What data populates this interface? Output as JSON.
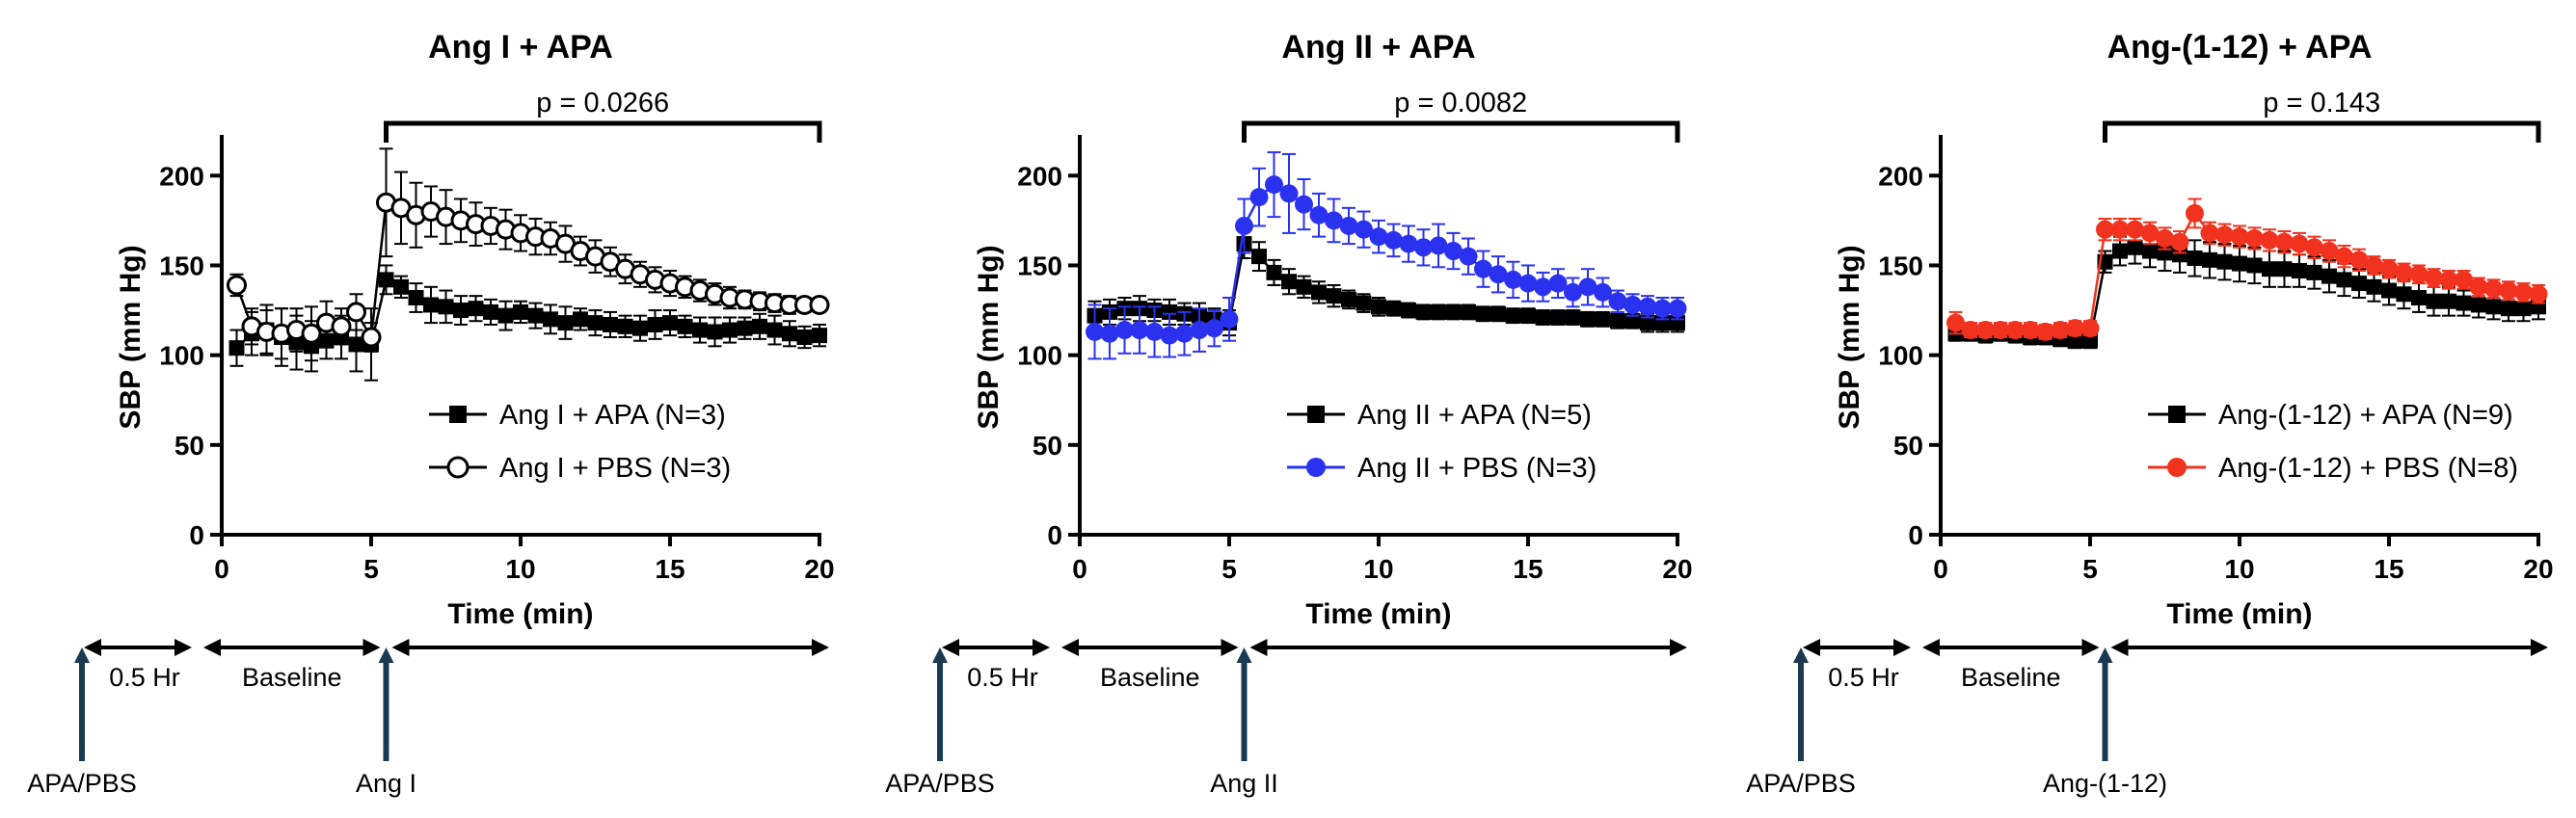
{
  "chart_data": [
    {
      "type": "line",
      "title": "Ang I + APA",
      "xlabel": "Time (min)",
      "ylabel": "SBP (mm Hg)",
      "xlim": [
        0,
        20
      ],
      "ylim": [
        0,
        220
      ],
      "xticks": [
        0,
        5,
        10,
        15,
        20
      ],
      "yticks": [
        0,
        50,
        100,
        150,
        200
      ],
      "pvalue_label": "p = 0.0266",
      "bracket_range": [
        5.5,
        20
      ],
      "legend_position": "lower-right",
      "timeline": {
        "interval_label": "0.5 Hr",
        "baseline_label": "Baseline",
        "treatment_label": "APA/PBS",
        "agonist_label": "Ang I"
      },
      "series": [
        {
          "name": "Ang I + APA (N=3)",
          "marker": "square-filled",
          "color": "#000000",
          "x": [
            0.5,
            1,
            1.5,
            2,
            2.5,
            3,
            3.5,
            4,
            4.5,
            5,
            5.5,
            6,
            6.5,
            7,
            7.5,
            8,
            8.5,
            9,
            9.5,
            10,
            10.5,
            11,
            11.5,
            12,
            12.5,
            13,
            13.5,
            14,
            14.5,
            15,
            15.5,
            16,
            16.5,
            17,
            17.5,
            18,
            18.5,
            19,
            19.5,
            20
          ],
          "y": [
            104,
            112,
            114,
            110,
            107,
            105,
            108,
            110,
            106,
            106,
            142,
            138,
            132,
            128,
            127,
            125,
            126,
            124,
            122,
            124,
            122,
            120,
            118,
            120,
            118,
            117,
            116,
            115,
            117,
            118,
            116,
            114,
            113,
            114,
            115,
            116,
            114,
            112,
            110,
            111
          ],
          "err": [
            10,
            12,
            14,
            16,
            15,
            14,
            10,
            12,
            15,
            20,
            8,
            6,
            8,
            10,
            9,
            8,
            7,
            7,
            8,
            6,
            7,
            8,
            9,
            6,
            7,
            7,
            6,
            7,
            8,
            7,
            6,
            7,
            8,
            7,
            6,
            7,
            8,
            7,
            6,
            6
          ]
        },
        {
          "name": "Ang I + PBS (N=3)",
          "marker": "circle-open",
          "color": "#000000",
          "x": [
            0.5,
            1,
            1.5,
            2,
            2.5,
            3,
            3.5,
            4,
            4.5,
            5,
            5.5,
            6,
            6.5,
            7,
            7.5,
            8,
            8.5,
            9,
            9.5,
            10,
            10.5,
            11,
            11.5,
            12,
            12.5,
            13,
            13.5,
            14,
            14.5,
            15,
            15.5,
            16,
            16.5,
            17,
            17.5,
            18,
            18.5,
            19,
            19.5,
            20
          ],
          "y": [
            139,
            116,
            113,
            112,
            114,
            112,
            118,
            116,
            124,
            110,
            185,
            182,
            178,
            180,
            177,
            175,
            173,
            172,
            170,
            168,
            166,
            165,
            162,
            158,
            155,
            152,
            148,
            145,
            142,
            140,
            138,
            136,
            134,
            132,
            131,
            130,
            129,
            128,
            128,
            128
          ],
          "err": [
            6,
            10,
            12,
            14,
            12,
            15,
            12,
            10,
            10,
            8,
            30,
            20,
            18,
            14,
            15,
            12,
            12,
            10,
            11,
            10,
            10,
            9,
            10,
            8,
            9,
            8,
            8,
            7,
            7,
            7,
            6,
            6,
            6,
            6,
            5,
            5,
            5,
            5,
            4,
            4
          ]
        }
      ]
    },
    {
      "type": "line",
      "title": "Ang II + APA",
      "xlabel": "Time (min)",
      "ylabel": "SBP (mm Hg)",
      "xlim": [
        0,
        20
      ],
      "ylim": [
        0,
        220
      ],
      "xticks": [
        0,
        5,
        10,
        15,
        20
      ],
      "yticks": [
        0,
        50,
        100,
        150,
        200
      ],
      "pvalue_label": "p = 0.0082",
      "bracket_range": [
        5.5,
        20
      ],
      "legend_position": "lower-right",
      "timeline": {
        "interval_label": "0.5 Hr",
        "baseline_label": "Baseline",
        "treatment_label": "APA/PBS",
        "agonist_label": "Ang II"
      },
      "series": [
        {
          "name": "Ang II + APA (N=5)",
          "marker": "square-filled",
          "color": "#000000",
          "x": [
            0.5,
            1,
            1.5,
            2,
            2.5,
            3,
            3.5,
            4,
            4.5,
            5,
            5.5,
            6,
            6.5,
            7,
            7.5,
            8,
            8.5,
            9,
            9.5,
            10,
            10.5,
            11,
            11.5,
            12,
            12.5,
            13,
            13.5,
            14,
            14.5,
            15,
            15.5,
            16,
            16.5,
            17,
            17.5,
            18,
            18.5,
            19,
            19.5,
            20
          ],
          "y": [
            122,
            124,
            126,
            126,
            125,
            124,
            123,
            122,
            120,
            118,
            162,
            155,
            146,
            141,
            138,
            135,
            133,
            131,
            129,
            127,
            126,
            125,
            124,
            124,
            124,
            124,
            123,
            123,
            122,
            122,
            121,
            121,
            121,
            120,
            120,
            119,
            119,
            118,
            118,
            118
          ],
          "err": [
            8,
            7,
            6,
            7,
            6,
            7,
            6,
            7,
            6,
            7,
            8,
            8,
            7,
            7,
            6,
            6,
            6,
            5,
            5,
            5,
            4,
            4,
            4,
            4,
            4,
            4,
            4,
            4,
            4,
            4,
            4,
            4,
            4,
            4,
            4,
            4,
            4,
            5,
            5,
            5
          ]
        },
        {
          "name": "Ang II + PBS (N=3)",
          "marker": "circle-filled",
          "color": "#2a32f0",
          "x": [
            0.5,
            1,
            1.5,
            2,
            2.5,
            3,
            3.5,
            4,
            4.5,
            5,
            5.5,
            6,
            6.5,
            7,
            7.5,
            8,
            8.5,
            9,
            9.5,
            10,
            10.5,
            11,
            11.5,
            12,
            12.5,
            13,
            13.5,
            14,
            14.5,
            15,
            15.5,
            16,
            16.5,
            17,
            17.5,
            18,
            18.5,
            19,
            19.5,
            20
          ],
          "y": [
            113,
            112,
            114,
            114,
            113,
            111,
            112,
            114,
            115,
            120,
            172,
            188,
            195,
            190,
            184,
            178,
            175,
            172,
            170,
            166,
            164,
            162,
            160,
            161,
            158,
            155,
            148,
            145,
            142,
            140,
            138,
            140,
            135,
            138,
            135,
            130,
            128,
            127,
            126,
            126
          ],
          "err": [
            15,
            14,
            13,
            13,
            14,
            12,
            12,
            12,
            10,
            12,
            15,
            16,
            18,
            22,
            14,
            12,
            12,
            10,
            10,
            9,
            9,
            10,
            10,
            12,
            10,
            10,
            10,
            10,
            10,
            10,
            8,
            8,
            8,
            10,
            8,
            6,
            6,
            6,
            6,
            6
          ]
        }
      ]
    },
    {
      "type": "line",
      "title": "Ang-(1-12) + APA",
      "xlabel": "Time (min)",
      "ylabel": "SBP (mm Hg)",
      "xlim": [
        0,
        20
      ],
      "ylim": [
        0,
        220
      ],
      "xticks": [
        0,
        5,
        10,
        15,
        20
      ],
      "yticks": [
        0,
        50,
        100,
        150,
        200
      ],
      "pvalue_label": "p = 0.143",
      "bracket_range": [
        5.5,
        20
      ],
      "legend_position": "lower-right",
      "timeline": {
        "interval_label": "0.5 Hr",
        "baseline_label": "Baseline",
        "treatment_label": "APA/PBS",
        "agonist_label": "Ang-(1-12)"
      },
      "series": [
        {
          "name": "Ang-(1-12) + APA (N=9)",
          "marker": "square-filled",
          "color": "#000000",
          "x": [
            0.5,
            1,
            1.5,
            2,
            2.5,
            3,
            3.5,
            4,
            4.5,
            5,
            5.5,
            6,
            6.5,
            7,
            7.5,
            8,
            8.5,
            9,
            9.5,
            10,
            10.5,
            11,
            11.5,
            12,
            12.5,
            13,
            13.5,
            14,
            14.5,
            15,
            15.5,
            16,
            16.5,
            17,
            17.5,
            18,
            18.5,
            19,
            19.5,
            20
          ],
          "y": [
            112,
            112,
            111,
            112,
            111,
            110,
            110,
            109,
            108,
            108,
            152,
            158,
            160,
            158,
            157,
            156,
            154,
            153,
            152,
            151,
            150,
            148,
            148,
            147,
            146,
            144,
            142,
            140,
            138,
            136,
            134,
            132,
            130,
            130,
            129,
            128,
            127,
            126,
            126,
            127
          ],
          "err": [
            4,
            4,
            4,
            4,
            4,
            4,
            4,
            4,
            4,
            4,
            6,
            8,
            9,
            9,
            10,
            10,
            10,
            10,
            10,
            10,
            10,
            10,
            10,
            9,
            9,
            9,
            9,
            8,
            8,
            8,
            8,
            8,
            8,
            8,
            7,
            7,
            7,
            7,
            7,
            7
          ]
        },
        {
          "name": "Ang-(1-12) + PBS (N=8)",
          "marker": "circle-filled",
          "color": "#f0321e",
          "x": [
            0.5,
            1,
            1.5,
            2,
            2.5,
            3,
            3.5,
            4,
            4.5,
            5,
            5.5,
            6,
            6.5,
            7,
            7.5,
            8,
            8.5,
            9,
            9.5,
            10,
            10.5,
            11,
            11.5,
            12,
            12.5,
            13,
            13.5,
            14,
            14.5,
            15,
            15.5,
            16,
            16.5,
            17,
            17.5,
            18,
            18.5,
            19,
            19.5,
            20
          ],
          "y": [
            118,
            114,
            114,
            114,
            114,
            114,
            113,
            114,
            115,
            115,
            170,
            170,
            170,
            168,
            165,
            163,
            179,
            168,
            167,
            166,
            165,
            164,
            163,
            162,
            160,
            158,
            155,
            153,
            150,
            148,
            146,
            145,
            143,
            142,
            142,
            138,
            137,
            136,
            135,
            134
          ],
          "err": [
            6,
            4,
            4,
            4,
            4,
            4,
            4,
            4,
            4,
            4,
            6,
            6,
            6,
            6,
            6,
            6,
            8,
            6,
            6,
            6,
            6,
            6,
            6,
            6,
            6,
            6,
            6,
            6,
            5,
            5,
            5,
            5,
            5,
            5,
            5,
            5,
            5,
            5,
            5,
            5
          ]
        }
      ]
    }
  ]
}
